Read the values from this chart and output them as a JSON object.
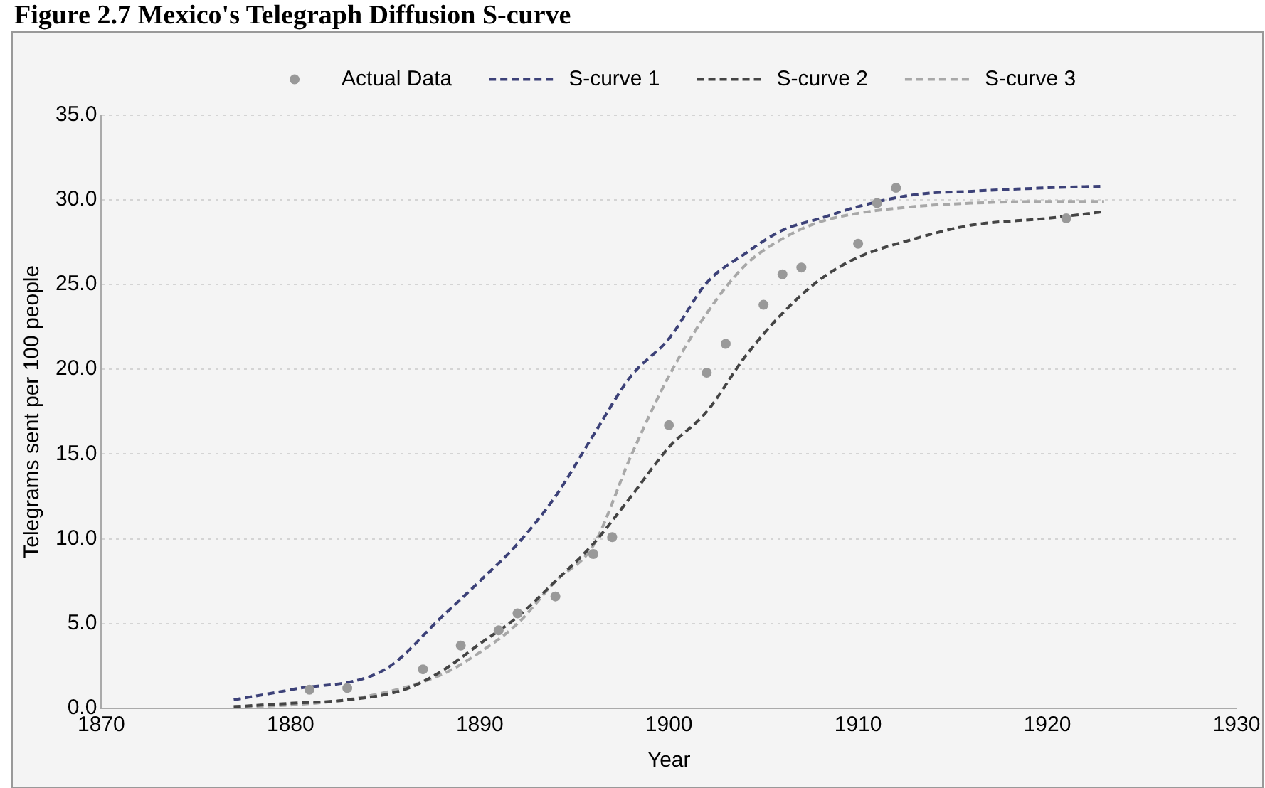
{
  "chart_data": {
    "type": "line",
    "title": "Figure 2.7 Mexico's Telegraph Diffusion S-curve",
    "xlabel": "Year",
    "ylabel": "Telegrams sent per 100 people",
    "xlim": [
      1870,
      1930
    ],
    "xticks": [
      1870,
      1880,
      1890,
      1900,
      1910,
      1920,
      1930
    ],
    "ylim": [
      0,
      35
    ],
    "yticks": [
      {
        "value": 0,
        "label": "0.0"
      },
      {
        "value": 5,
        "label": "5.0"
      },
      {
        "value": 10,
        "label": "10.0"
      },
      {
        "value": 15,
        "label": "15.0"
      },
      {
        "value": 20,
        "label": "20.0"
      },
      {
        "value": 25,
        "label": "25.0"
      },
      {
        "value": 30,
        "label": "30.0"
      },
      {
        "value": 35,
        "label": "35.0"
      }
    ],
    "grid": "y",
    "legend": "top",
    "line_style": "dashed",
    "marker": "none",
    "series": [
      {
        "name": "Actual Data",
        "type": "scatter",
        "marker": "circle",
        "color": "#999999",
        "x": [
          1881,
          1883,
          1887,
          1889,
          1891,
          1892,
          1894,
          1896,
          1897,
          1900,
          1902,
          1903,
          1905,
          1906,
          1907,
          1910,
          1911,
          1912,
          1921
        ],
        "values": [
          1.1,
          1.2,
          2.3,
          3.7,
          4.6,
          5.6,
          6.6,
          9.1,
          10.1,
          16.7,
          19.8,
          21.5,
          23.8,
          25.6,
          26.0,
          27.4,
          29.8,
          30.7,
          28.9
        ]
      },
      {
        "name": "S-curve 1",
        "color": "#3c4178",
        "x": [
          1877,
          1880,
          1885,
          1888,
          1890,
          1892,
          1894,
          1896,
          1898,
          1900,
          1902,
          1904,
          1906,
          1908,
          1910,
          1913,
          1916,
          1920,
          1923
        ],
        "values": [
          0.5,
          1.1,
          2.3,
          5.4,
          7.5,
          9.7,
          12.5,
          16.1,
          19.6,
          21.8,
          25.1,
          26.8,
          28.2,
          28.9,
          29.6,
          30.3,
          30.5,
          30.7,
          30.8
        ]
      },
      {
        "name": "S-curve 2",
        "color": "#444444",
        "x": [
          1877,
          1880,
          1883,
          1886,
          1888,
          1890,
          1892,
          1894,
          1896,
          1898,
          1900,
          1902,
          1904,
          1906,
          1908,
          1910,
          1913,
          1916,
          1920,
          1923
        ],
        "values": [
          0.1,
          0.3,
          0.5,
          1.1,
          2.2,
          3.8,
          5.4,
          7.5,
          9.7,
          12.5,
          15.4,
          17.5,
          20.7,
          23.3,
          25.3,
          26.6,
          27.7,
          28.5,
          28.9,
          29.3
        ]
      },
      {
        "name": "S-curve 3",
        "color": "#a8a8a8",
        "x": [
          1877,
          1880,
          1884,
          1888,
          1890,
          1892,
          1894,
          1896,
          1898,
          1900,
          1902,
          1904,
          1906,
          1908,
          1910,
          1913,
          1916,
          1920,
          1923
        ],
        "values": [
          0.1,
          0.2,
          0.7,
          2.0,
          3.3,
          5.0,
          7.5,
          9.6,
          14.9,
          19.6,
          23.3,
          26.1,
          27.7,
          28.7,
          29.2,
          29.6,
          29.8,
          29.9,
          29.9
        ]
      }
    ]
  }
}
